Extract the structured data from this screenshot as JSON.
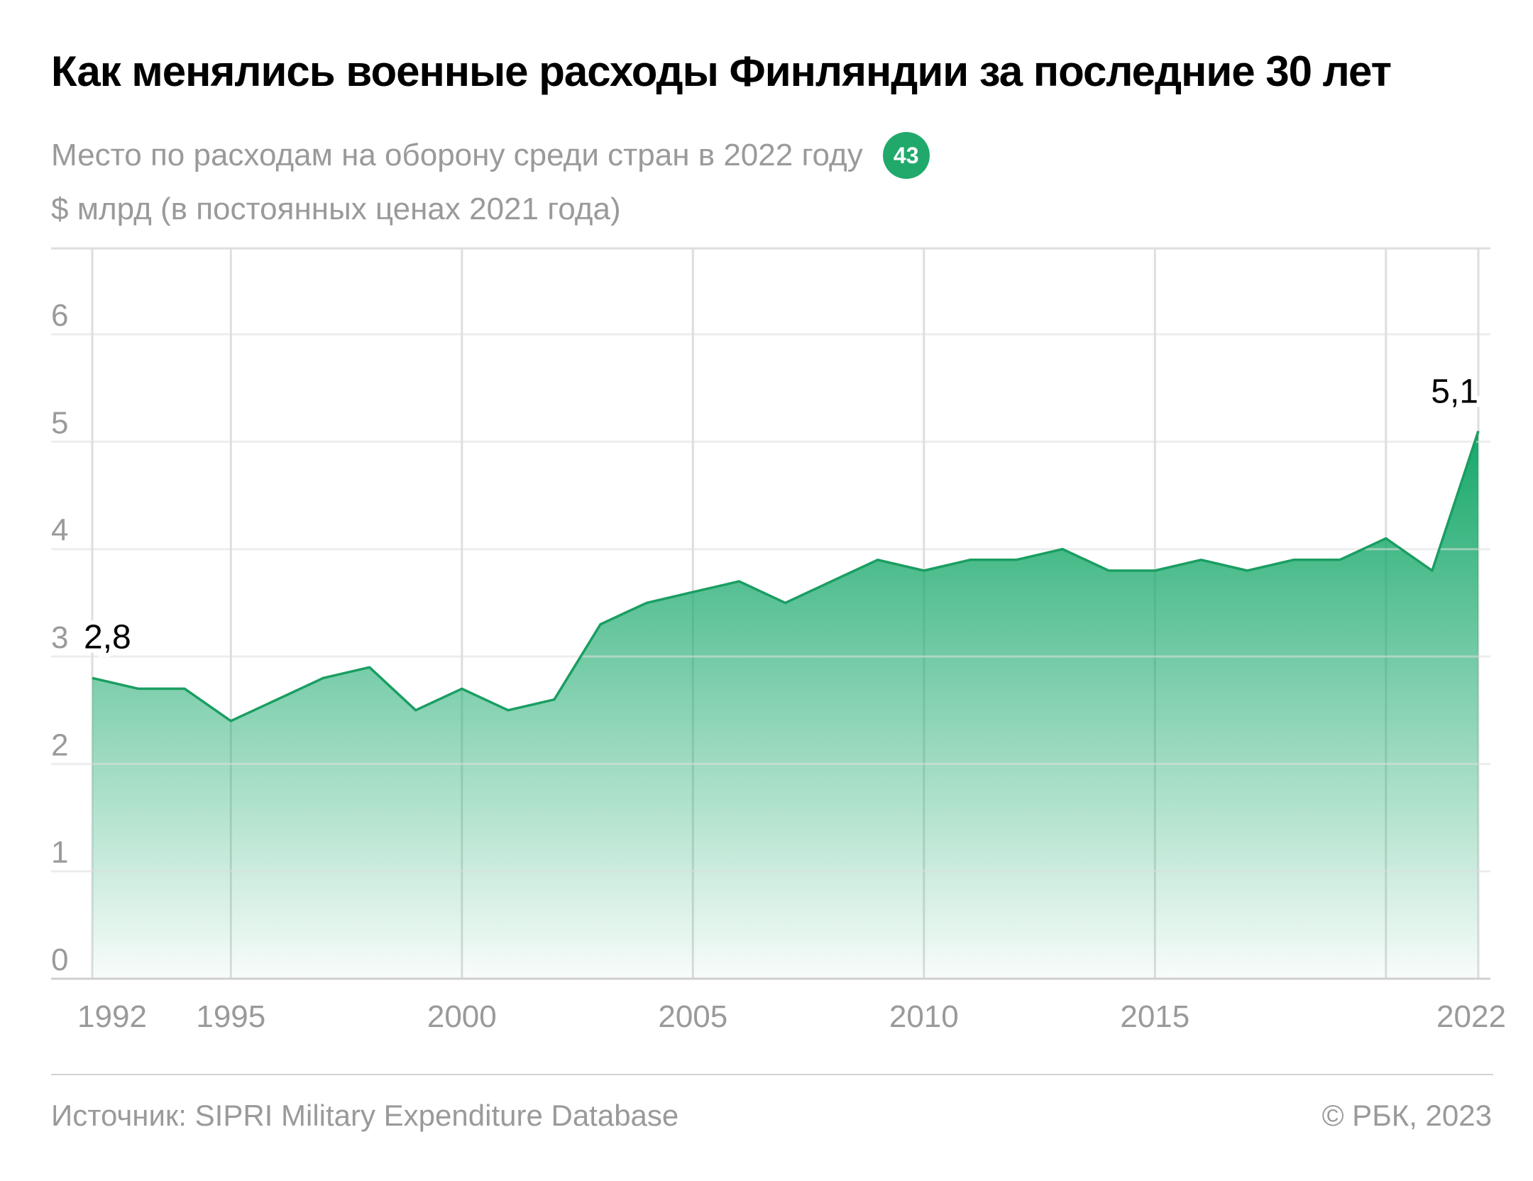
{
  "title": "Как менялись военные расходы Финляндии за последние 30 лет",
  "subtitle": {
    "text": "Место по расходам на оборону среди стран в 2022 году",
    "rank": "43"
  },
  "unit_label": "$ млрд (в постоянных ценах 2021 года)",
  "footer": {
    "source": "Источник: SIPRI Military Expenditure Database",
    "copyright": "© РБК, 2023"
  },
  "colors": {
    "accent": "#21a96b",
    "line": "#1a9e62",
    "grid": "#dedede",
    "axis_text": "#9a9a9a"
  },
  "chart_data": {
    "type": "area",
    "x": [
      1992,
      1993,
      1994,
      1995,
      1996,
      1997,
      1998,
      1999,
      2000,
      2001,
      2002,
      2003,
      2004,
      2005,
      2006,
      2007,
      2008,
      2009,
      2010,
      2011,
      2012,
      2013,
      2014,
      2015,
      2016,
      2017,
      2018,
      2019,
      2020,
      2021,
      2022
    ],
    "values": [
      2.8,
      2.7,
      2.7,
      2.4,
      2.6,
      2.8,
      2.9,
      2.5,
      2.7,
      2.5,
      2.6,
      3.3,
      3.5,
      3.6,
      3.7,
      3.5,
      3.7,
      3.9,
      3.8,
      3.9,
      3.9,
      4.0,
      3.8,
      3.8,
      3.9,
      3.8,
      3.9,
      3.9,
      4.1,
      3.8,
      5.1
    ],
    "xlim": [
      1992,
      2022
    ],
    "ylim": [
      0,
      6.8
    ],
    "y_ticks": [
      "0",
      "1",
      "2",
      "3",
      "4",
      "5",
      "6"
    ],
    "x_ticks": [
      "1992",
      "1995",
      "2000",
      "2005",
      "2010",
      "2015",
      "2022"
    ],
    "x_gridlines": [
      1992,
      1995,
      2000,
      2005,
      2010,
      2015,
      2020,
      2022
    ],
    "annotations": [
      {
        "x": 1992,
        "value": 2.8,
        "label": "2,8"
      },
      {
        "x": 2022,
        "value": 5.1,
        "label": "5,1"
      }
    ],
    "grid": true
  }
}
